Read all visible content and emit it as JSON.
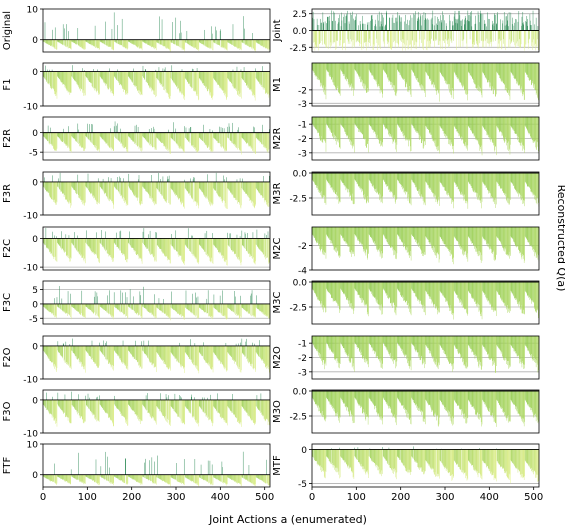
{
  "figure": {
    "xlabel": "Joint Actions a (enumerated)",
    "ylabel": "Reconstructed Q(a)",
    "x_ticks": [
      0,
      100,
      200,
      300,
      400,
      500
    ],
    "colors": {
      "high": "#2e8b57",
      "mid": "#8cc84b",
      "low": "#e6f28c",
      "line": "#000000",
      "grid": "#b0b0b0"
    }
  },
  "chart_data": [
    {
      "type": "bar",
      "label": "Original",
      "ylim": [
        -4,
        10
      ],
      "yticks": [
        0,
        10
      ],
      "n": 512,
      "profile": "spiky",
      "peak": 9,
      "trough": -4
    },
    {
      "type": "bar",
      "label": "Joint",
      "ylim": [
        -3.2,
        3.2
      ],
      "yticks": [
        -2.5,
        0.0,
        2.5
      ],
      "hlines": [
        -2.5,
        2.5
      ],
      "n": 512,
      "profile": "joint",
      "peak": 3,
      "trough": -3
    },
    {
      "type": "bar",
      "label": "F1",
      "ylim": [
        -10,
        2.5
      ],
      "yticks": [
        -10,
        0
      ],
      "hlines": [
        -10
      ],
      "n": 512,
      "profile": "spiky",
      "peak": 2,
      "trough": -9
    },
    {
      "type": "bar",
      "label": "M1",
      "ylim": [
        -3.2,
        0
      ],
      "yticks": [
        -3,
        -2
      ],
      "hlines": [
        -2,
        -3
      ],
      "n": 512,
      "profile": "neg",
      "peak": -0.2,
      "trough": -3
    },
    {
      "type": "bar",
      "label": "F2R",
      "ylim": [
        -7,
        4
      ],
      "yticks": [
        -5,
        0
      ],
      "hlines": [
        -5
      ],
      "n": 512,
      "profile": "spiky",
      "peak": 3,
      "trough": -6
    },
    {
      "type": "bar",
      "label": "M2R",
      "ylim": [
        -3.5,
        -0.5
      ],
      "yticks": [
        -3,
        -2,
        -1
      ],
      "hlines": [
        -1,
        -2,
        -3
      ],
      "n": 512,
      "profile": "neg",
      "peak": -0.7,
      "trough": -3.3
    },
    {
      "type": "bar",
      "label": "F3R",
      "ylim": [
        -10,
        3
      ],
      "yticks": [
        -10,
        0
      ],
      "hlines": [
        -10
      ],
      "n": 512,
      "profile": "spiky",
      "peak": 3,
      "trough": -9
    },
    {
      "type": "bar",
      "label": "M3R",
      "ylim": [
        -4.2,
        0.1
      ],
      "yticks": [
        -2.5,
        0.0
      ],
      "hlines": [
        -2.5
      ],
      "n": 512,
      "profile": "neg",
      "peak": -0.3,
      "trough": -3.8
    },
    {
      "type": "bar",
      "label": "F2C",
      "ylim": [
        -11,
        4
      ],
      "yticks": [
        -10,
        0
      ],
      "hlines": [
        -10
      ],
      "n": 512,
      "profile": "spiky",
      "peak": 4,
      "trough": -10
    },
    {
      "type": "bar",
      "label": "M2C",
      "ylim": [
        -4,
        -0.5
      ],
      "yticks": [
        -4,
        -2
      ],
      "hlines": [
        -2,
        -4
      ],
      "n": 512,
      "profile": "neg",
      "peak": -0.8,
      "trough": -3.7
    },
    {
      "type": "bar",
      "label": "F3C",
      "ylim": [
        -7,
        8
      ],
      "yticks": [
        -5,
        0,
        5
      ],
      "hlines": [
        -5,
        5
      ],
      "n": 512,
      "profile": "spiky",
      "peak": 7,
      "trough": -6
    },
    {
      "type": "bar",
      "label": "M3C",
      "ylim": [
        -4.2,
        0.1
      ],
      "yticks": [
        -2.5,
        0.0
      ],
      "hlines": [
        -2.5
      ],
      "n": 512,
      "profile": "neg",
      "peak": -0.3,
      "trough": -3.9
    },
    {
      "type": "bar",
      "label": "F2O",
      "ylim": [
        -10,
        3
      ],
      "yticks": [
        -10,
        0
      ],
      "hlines": [
        -10
      ],
      "n": 512,
      "profile": "spiky",
      "peak": 2.5,
      "trough": -9
    },
    {
      "type": "bar",
      "label": "M2O",
      "ylim": [
        -3.5,
        -0.5
      ],
      "yticks": [
        -3,
        -2,
        -1
      ],
      "hlines": [
        -1,
        -2,
        -3
      ],
      "n": 512,
      "profile": "neg",
      "peak": -0.7,
      "trough": -3.3
    },
    {
      "type": "bar",
      "label": "F3O",
      "ylim": [
        -10,
        3
      ],
      "yticks": [
        -10,
        0
      ],
      "hlines": [
        -10
      ],
      "n": 512,
      "profile": "spiky",
      "peak": 2.5,
      "trough": -9
    },
    {
      "type": "bar",
      "label": "M3O",
      "ylim": [
        -4.2,
        0.1
      ],
      "yticks": [
        -2.5,
        0.0
      ],
      "hlines": [
        -2.5
      ],
      "n": 512,
      "profile": "neg",
      "peak": -0.3,
      "trough": -3.9
    },
    {
      "type": "bar",
      "label": "FTF",
      "ylim": [
        -4,
        10
      ],
      "yticks": [
        0,
        10
      ],
      "n": 512,
      "profile": "spiky",
      "peak": 9,
      "trough": -4
    },
    {
      "type": "bar",
      "label": "MTF",
      "ylim": [
        -5.5,
        0.8
      ],
      "yticks": [
        0,
        -5
      ],
      "hlines": [
        -5
      ],
      "n": 512,
      "profile": "mtf",
      "peak": 0.5,
      "trough": -5
    }
  ]
}
